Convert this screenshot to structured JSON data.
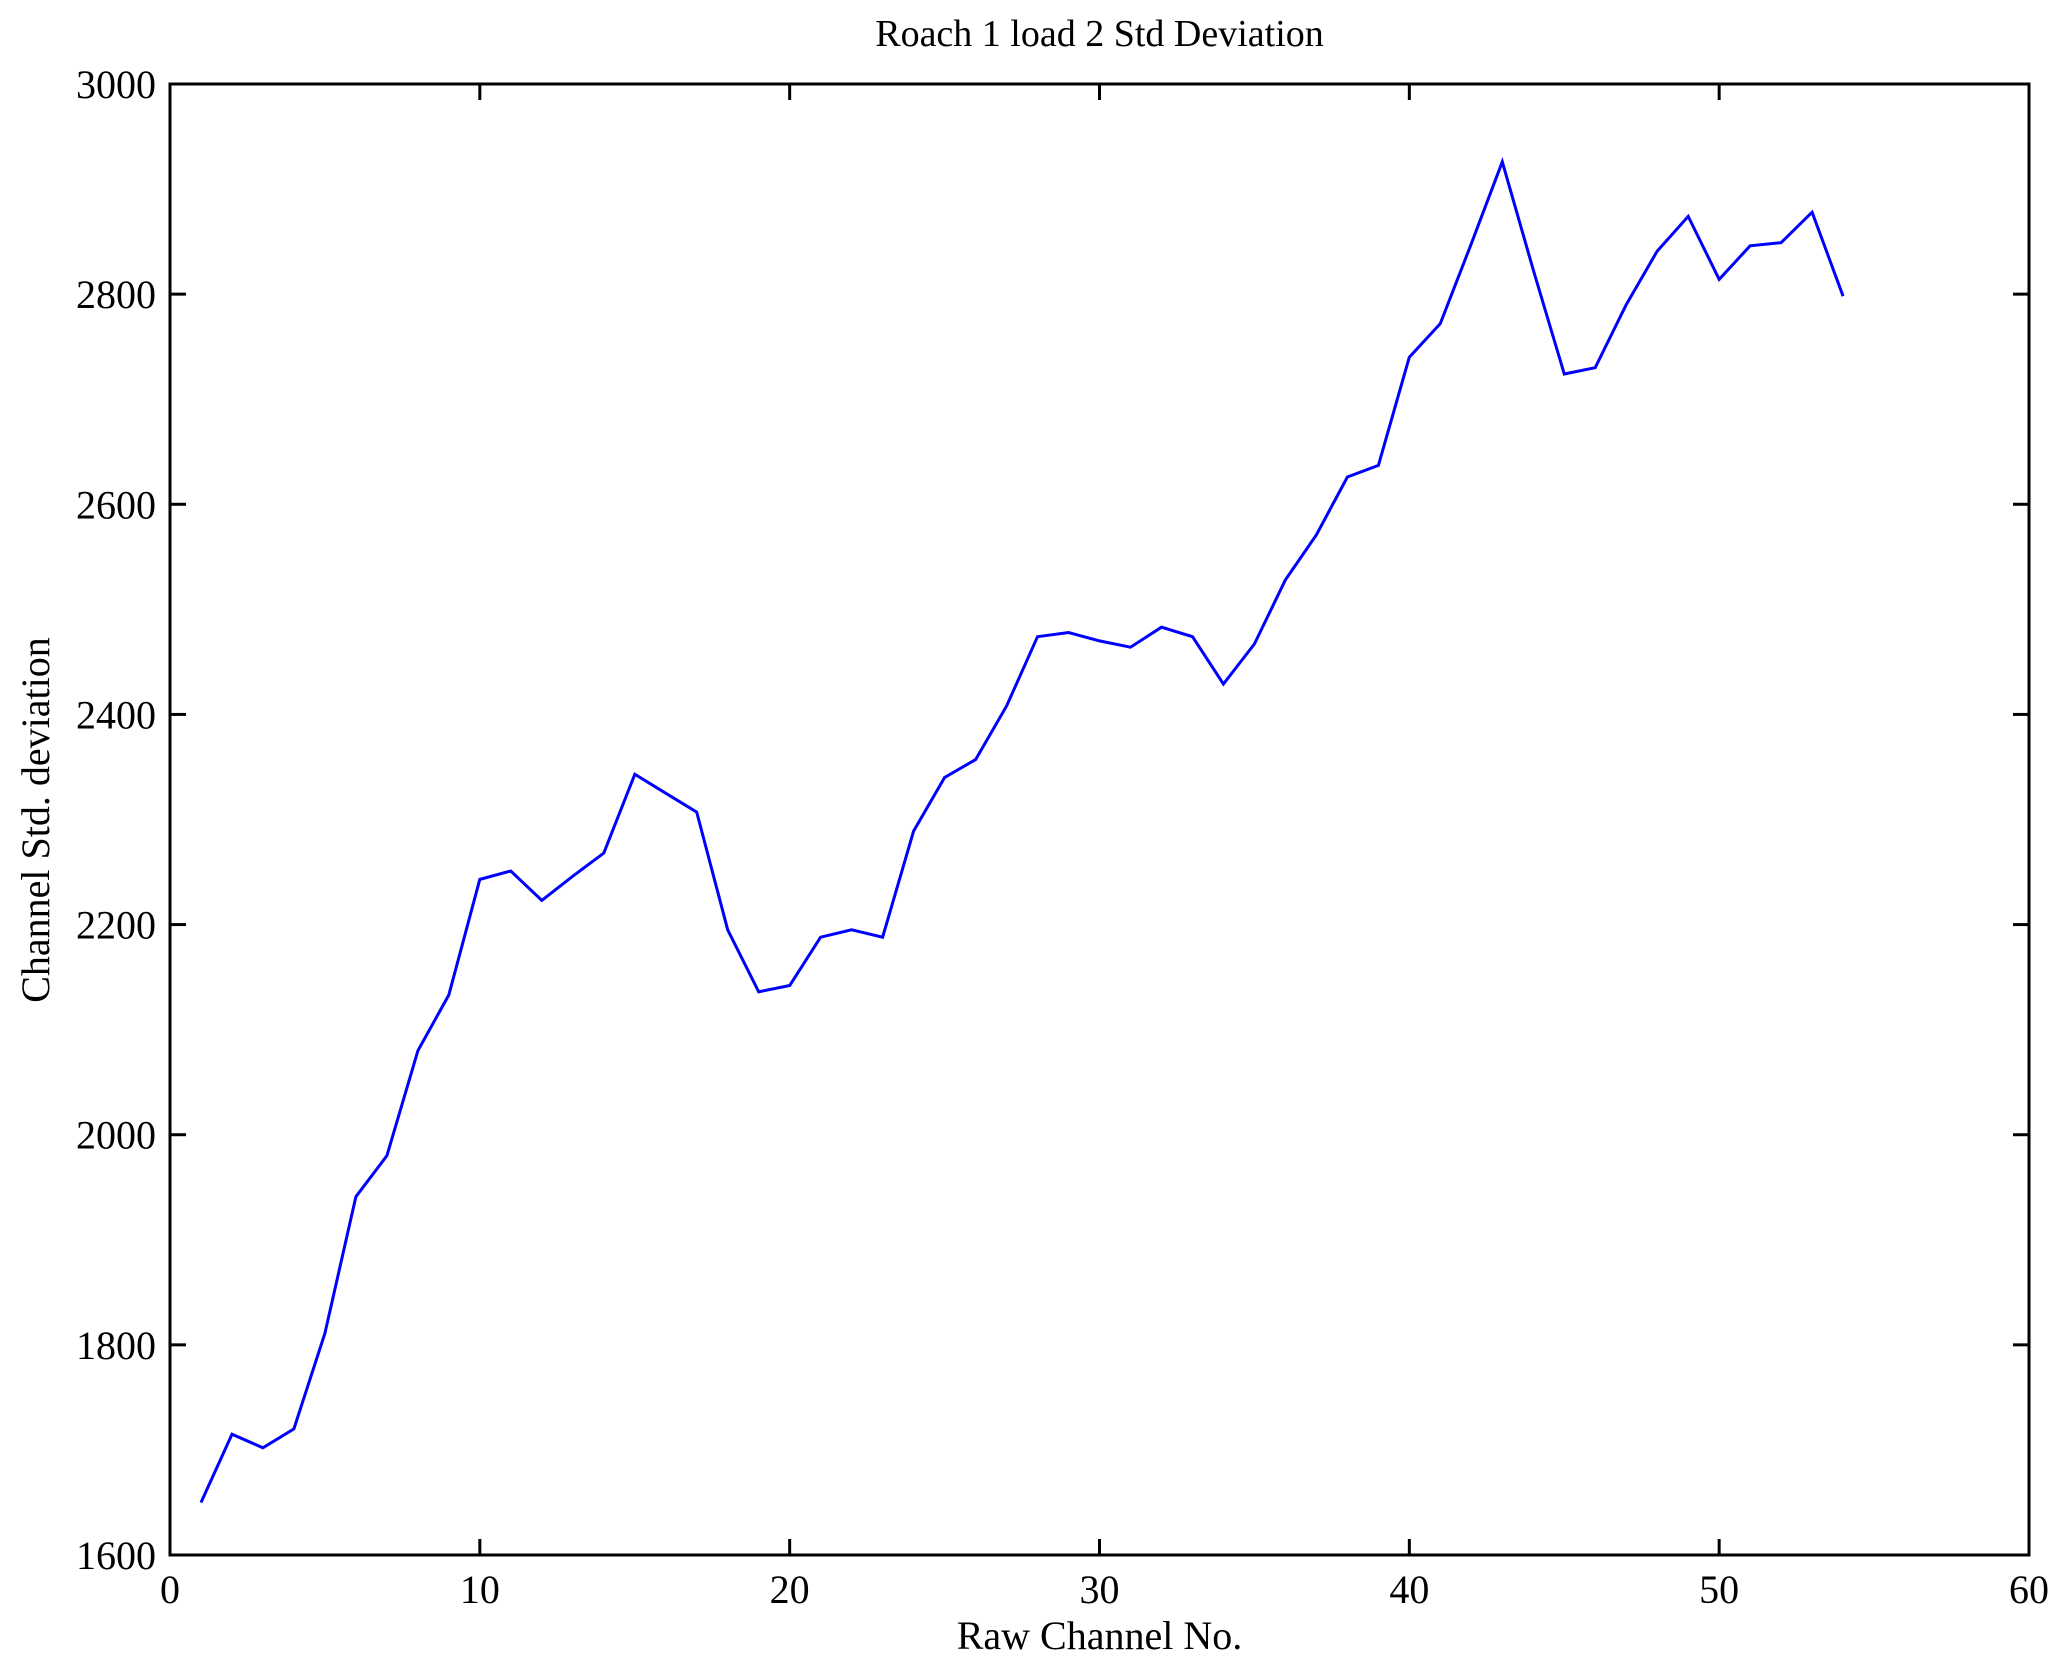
{
  "figure": {
    "title": "Roach 1 load 2 Std Deviation",
    "xlabel": "Raw Channel No.",
    "ylabel": "Channel Std. deviation"
  },
  "chart_data": {
    "type": "line",
    "title": "Roach 1 load 2 Std Deviation",
    "xlabel": "Raw Channel No.",
    "ylabel": "Channel Std. deviation",
    "xlim": [
      0,
      60
    ],
    "ylim": [
      1600,
      3000
    ],
    "xticks": [
      0,
      10,
      20,
      30,
      40,
      50,
      60
    ],
    "yticks": [
      1600,
      1800,
      2000,
      2200,
      2400,
      2600,
      2800,
      3000
    ],
    "grid": false,
    "legend_position": "none",
    "line_color": "#0000ff",
    "axis_color": "#000000",
    "series": [
      {
        "name": "Channel Std. deviation",
        "x": [
          1,
          2,
          3,
          4,
          5,
          6,
          7,
          8,
          9,
          10,
          11,
          12,
          13,
          14,
          15,
          16,
          17,
          18,
          19,
          20,
          21,
          22,
          23,
          24,
          25,
          26,
          27,
          28,
          29,
          30,
          31,
          32,
          33,
          34,
          35,
          36,
          37,
          38,
          39,
          40,
          41,
          42,
          43,
          44,
          45,
          46,
          47,
          48,
          49,
          50,
          51,
          52,
          53,
          54
        ],
        "y": [
          1650,
          1715,
          1702,
          1720,
          1811,
          1941,
          1980,
          2080,
          2133,
          2243,
          2251,
          2223,
          2246,
          2268,
          2343,
          2325,
          2307,
          2195,
          2136,
          2142,
          2188,
          2195,
          2188,
          2289,
          2340,
          2357,
          2408,
          2474,
          2478,
          2470,
          2464,
          2483,
          2474,
          2429,
          2467,
          2528,
          2571,
          2626,
          2637,
          2740,
          2772,
          2848,
          2926,
          2823,
          2724,
          2730,
          2790,
          2841,
          2874,
          2814,
          2846,
          2849,
          2878,
          2798
        ]
      }
    ]
  }
}
